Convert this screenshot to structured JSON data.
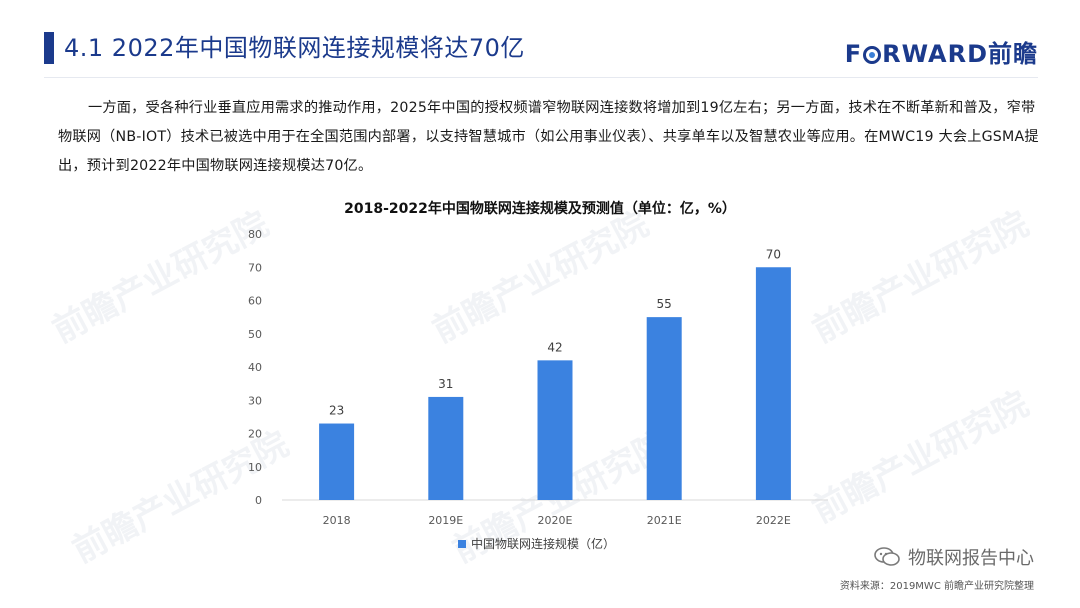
{
  "header": {
    "title": "4.1 2022年中国物联网连接规模将达70亿",
    "logo_text_before": "F",
    "logo_text_after": "RWARD前瞻"
  },
  "body_text": "一方面，受各种行业垂直应用需求的推动作用，2025年中国的授权频谱窄物联网连接数将增加到19亿左右；另一方面，技术在不断革新和普及，窄带物联网（NB-IOT）技术已被选中用于在全国范围内部署，以支持智慧城市（如公用事业仪表）、共享单车以及智慧农业等应用。在MWC19 大会上GSMA提出，预计到2022年中国物联网连接规模达70亿。",
  "watermark_text": "前瞻产业研究院",
  "footer": {
    "wechat_label": "物联网报告中心",
    "source": "资料来源：2019MWC 前瞻产业研究院整理"
  },
  "colors": {
    "brand": "#1b3a8c",
    "bar": "#3b82e0",
    "axis_text": "#595959"
  },
  "chart_data": {
    "type": "bar",
    "title": "2018-2022年中国物联网连接规模及预测值（单位：亿，%）",
    "categories": [
      "2018",
      "2019E",
      "2020E",
      "2021E",
      "2022E"
    ],
    "series": [
      {
        "name": "中国物联网连接规模（亿）",
        "values": [
          23,
          31,
          42,
          55,
          70
        ]
      }
    ],
    "ylim": [
      0,
      80
    ],
    "yticks": [
      0,
      10,
      20,
      30,
      40,
      50,
      60,
      70,
      80
    ],
    "data_labels": true,
    "grid": false,
    "legend": "bottom"
  }
}
